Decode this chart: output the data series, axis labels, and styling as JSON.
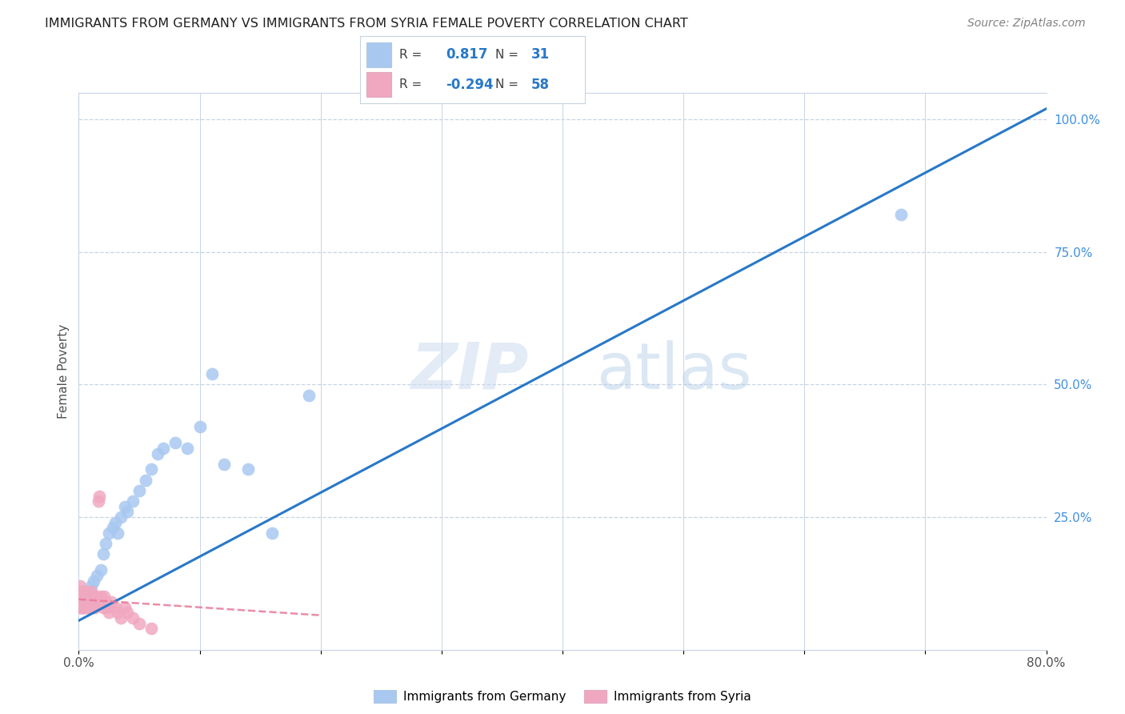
{
  "title": "IMMIGRANTS FROM GERMANY VS IMMIGRANTS FROM SYRIA FEMALE POVERTY CORRELATION CHART",
  "source": "Source: ZipAtlas.com",
  "ylabel": "Female Poverty",
  "watermark_zip": "ZIP",
  "watermark_atlas": "atlas",
  "legend_germany_R": "0.817",
  "legend_germany_N": "31",
  "legend_syria_R": "-0.294",
  "legend_syria_N": "58",
  "legend_label_germany": "Immigrants from Germany",
  "legend_label_syria": "Immigrants from Syria",
  "germany_color": "#a8c8f0",
  "germany_line_color": "#2878c8",
  "syria_color": "#f0a8c0",
  "syria_line_color": "#e87898",
  "background_color": "#ffffff",
  "grid_color": "#c8d4e4",
  "title_color": "#202020",
  "right_axis_color": "#4090e0",
  "legend_R_color": "#2878c8",
  "xlim": [
    0.0,
    0.8
  ],
  "ylim": [
    0.0,
    1.05
  ],
  "germany_x": [
    0.004,
    0.006,
    0.008,
    0.01,
    0.012,
    0.015,
    0.018,
    0.02,
    0.022,
    0.025,
    0.028,
    0.03,
    0.032,
    0.035,
    0.038,
    0.04,
    0.045,
    0.05,
    0.055,
    0.06,
    0.065,
    0.07,
    0.08,
    0.09,
    0.1,
    0.11,
    0.12,
    0.14,
    0.16,
    0.19,
    0.68
  ],
  "germany_y": [
    0.08,
    0.1,
    0.1,
    0.12,
    0.13,
    0.14,
    0.15,
    0.18,
    0.2,
    0.22,
    0.23,
    0.24,
    0.22,
    0.25,
    0.27,
    0.26,
    0.28,
    0.3,
    0.32,
    0.34,
    0.37,
    0.38,
    0.39,
    0.38,
    0.42,
    0.52,
    0.35,
    0.34,
    0.22,
    0.48,
    0.82
  ],
  "syria_x": [
    0.001,
    0.001,
    0.001,
    0.002,
    0.002,
    0.002,
    0.002,
    0.003,
    0.003,
    0.003,
    0.003,
    0.004,
    0.004,
    0.004,
    0.004,
    0.005,
    0.005,
    0.005,
    0.005,
    0.006,
    0.006,
    0.006,
    0.007,
    0.007,
    0.007,
    0.008,
    0.008,
    0.008,
    0.009,
    0.009,
    0.01,
    0.01,
    0.011,
    0.011,
    0.012,
    0.012,
    0.013,
    0.013,
    0.014,
    0.015,
    0.016,
    0.017,
    0.018,
    0.019,
    0.02,
    0.021,
    0.022,
    0.023,
    0.025,
    0.027,
    0.03,
    0.032,
    0.035,
    0.038,
    0.04,
    0.045,
    0.05,
    0.06
  ],
  "syria_y": [
    0.12,
    0.1,
    0.08,
    0.11,
    0.1,
    0.08,
    0.09,
    0.1,
    0.11,
    0.09,
    0.08,
    0.1,
    0.09,
    0.11,
    0.08,
    0.1,
    0.09,
    0.11,
    0.08,
    0.1,
    0.09,
    0.11,
    0.1,
    0.09,
    0.08,
    0.1,
    0.09,
    0.08,
    0.09,
    0.1,
    0.09,
    0.11,
    0.1,
    0.08,
    0.09,
    0.1,
    0.09,
    0.08,
    0.1,
    0.09,
    0.28,
    0.29,
    0.1,
    0.09,
    0.08,
    0.1,
    0.09,
    0.08,
    0.07,
    0.09,
    0.08,
    0.07,
    0.06,
    0.08,
    0.07,
    0.06,
    0.05,
    0.04
  ],
  "germany_line_x": [
    0.0,
    0.8
  ],
  "germany_line_y": [
    0.055,
    1.02
  ],
  "syria_line_x": [
    0.0,
    0.2
  ],
  "syria_line_y": [
    0.095,
    0.065
  ]
}
